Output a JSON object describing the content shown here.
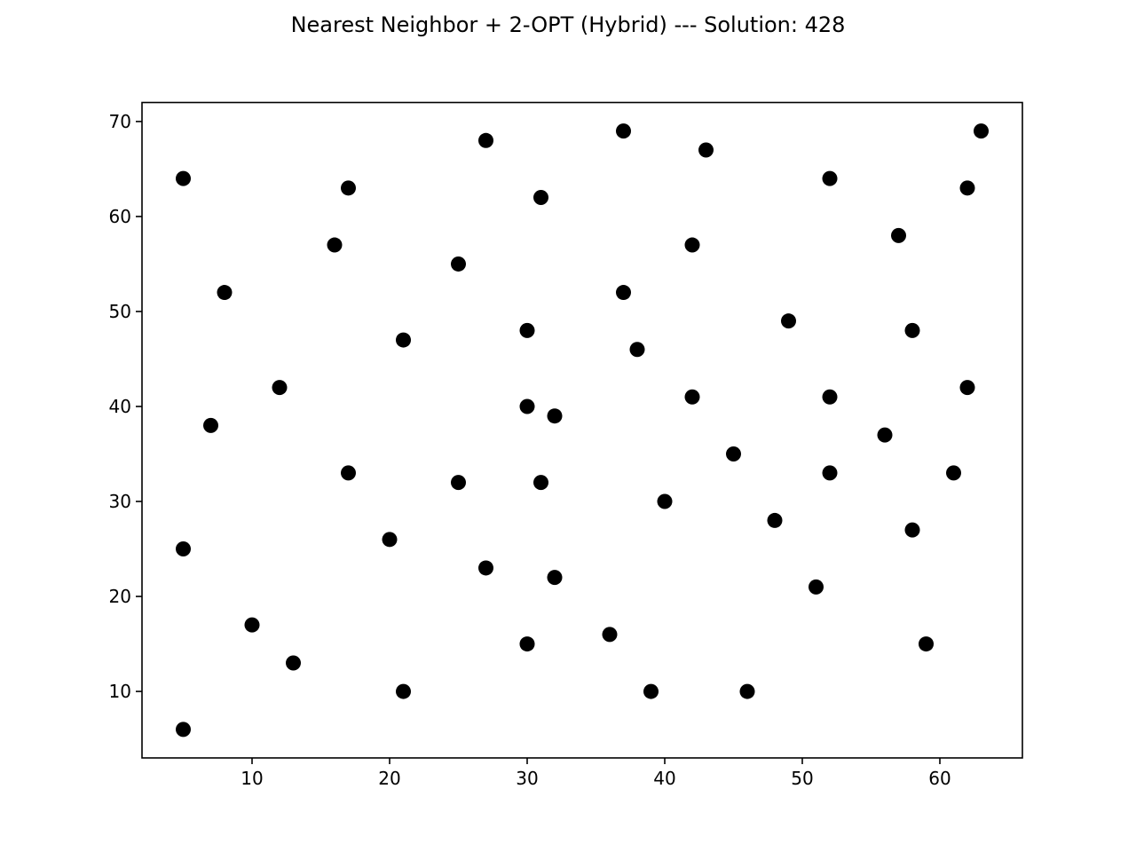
{
  "chart_data": {
    "type": "scatter",
    "title": "Nearest Neighbor + 2-OPT (Hybrid) --- Solution: 428",
    "xlabel": "",
    "ylabel": "",
    "xlim": [
      2,
      66
    ],
    "ylim": [
      3,
      72
    ],
    "grid": false,
    "point_color": "#000000",
    "xticks": [
      10,
      20,
      30,
      40,
      50,
      60
    ],
    "yticks": [
      10,
      20,
      30,
      40,
      50,
      60,
      70
    ],
    "points": [
      [
        5,
        64
      ],
      [
        17,
        63
      ],
      [
        16,
        57
      ],
      [
        8,
        52
      ],
      [
        21,
        47
      ],
      [
        12,
        42
      ],
      [
        7,
        38
      ],
      [
        17,
        33
      ],
      [
        5,
        25
      ],
      [
        20,
        26
      ],
      [
        10,
        17
      ],
      [
        13,
        13
      ],
      [
        5,
        6
      ],
      [
        21,
        10
      ],
      [
        27,
        68
      ],
      [
        31,
        62
      ],
      [
        25,
        55
      ],
      [
        30,
        48
      ],
      [
        30,
        40
      ],
      [
        32,
        39
      ],
      [
        25,
        32
      ],
      [
        31,
        32
      ],
      [
        27,
        23
      ],
      [
        32,
        22
      ],
      [
        30,
        15
      ],
      [
        37,
        69
      ],
      [
        43,
        67
      ],
      [
        42,
        57
      ],
      [
        37,
        52
      ],
      [
        38,
        46
      ],
      [
        42,
        41
      ],
      [
        45,
        35
      ],
      [
        40,
        30
      ],
      [
        36,
        16
      ],
      [
        39,
        10
      ],
      [
        46,
        10
      ],
      [
        63,
        69
      ],
      [
        52,
        64
      ],
      [
        62,
        63
      ],
      [
        57,
        58
      ],
      [
        49,
        49
      ],
      [
        58,
        48
      ],
      [
        62,
        42
      ],
      [
        52,
        41
      ],
      [
        56,
        37
      ],
      [
        52,
        33
      ],
      [
        61,
        33
      ],
      [
        48,
        28
      ],
      [
        58,
        27
      ],
      [
        51,
        21
      ],
      [
        59,
        15
      ]
    ]
  }
}
